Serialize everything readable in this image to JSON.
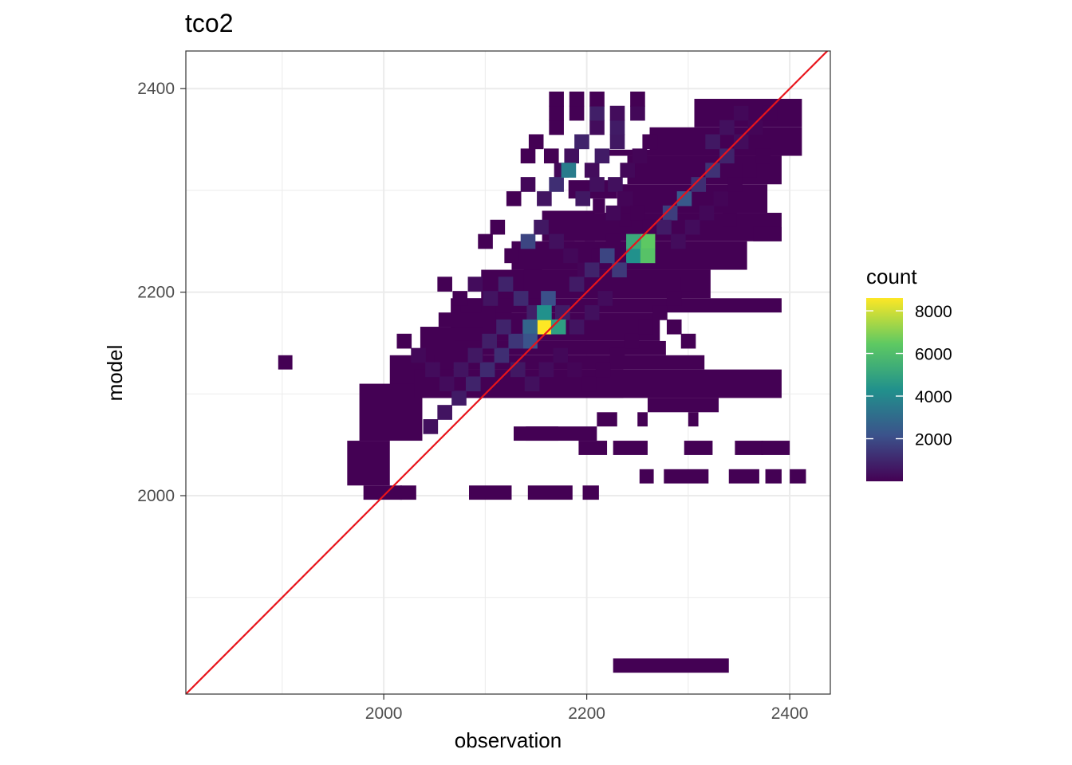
{
  "chart_data": {
    "type": "heatmap",
    "title": "tco2",
    "xlabel": "observation",
    "ylabel": "model",
    "xlim": [
      1805,
      2440
    ],
    "ylim": [
      1805,
      2437
    ],
    "x_ticks": [
      2000,
      2200,
      2400
    ],
    "y_ticks": [
      2000,
      2200,
      2400
    ],
    "grid": true,
    "bin_width": 14.3,
    "bin_height": 14.3,
    "legend": {
      "title": "count",
      "position": "right",
      "range": [
        1,
        8600
      ],
      "ticks": [
        2000,
        4000,
        6000,
        8000
      ]
    },
    "colorscale": [
      "#440154",
      "#3b528b",
      "#21918c",
      "#5ec962",
      "#fde725"
    ],
    "reference_line": {
      "description": "y = x",
      "color": "#e8141b"
    },
    "bins": [
      [
        2170,
        2362,
        1
      ],
      [
        2170,
        2376,
        1
      ],
      [
        2170,
        2390,
        1
      ],
      [
        2190,
        2376,
        1
      ],
      [
        2190,
        2390,
        1
      ],
      [
        2210,
        2362,
        300
      ],
      [
        2210,
        2376,
        800
      ],
      [
        2210,
        2390,
        1
      ],
      [
        2230,
        2348,
        600
      ],
      [
        2230,
        2362,
        700
      ],
      [
        2230,
        2376,
        300
      ],
      [
        2250,
        2376,
        200
      ],
      [
        2250,
        2390,
        1
      ],
      [
        2142,
        2334,
        1
      ],
      [
        2150,
        2348,
        1
      ],
      [
        2165,
        2334,
        1
      ],
      [
        2175,
        2320,
        200
      ],
      [
        2185,
        2334,
        400
      ],
      [
        2195,
        2348,
        900
      ],
      [
        2205,
        2320,
        300
      ],
      [
        2215,
        2334,
        700
      ],
      [
        2228,
        2306,
        400
      ],
      [
        2240,
        2320,
        200
      ],
      [
        2252,
        2334,
        100
      ],
      [
        2262,
        2348,
        1
      ],
      [
        2128,
        2292,
        1
      ],
      [
        2142,
        2306,
        200
      ],
      [
        2158,
        2292,
        500
      ],
      [
        2170,
        2306,
        1200
      ],
      [
        2182,
        2320,
        3600
      ],
      [
        2196,
        2292,
        600
      ],
      [
        2210,
        2306,
        400
      ],
      [
        2226,
        2278,
        200
      ],
      [
        2238,
        2292,
        100
      ],
      [
        2250,
        2278,
        1
      ],
      [
        2100,
        2250,
        1
      ],
      [
        2112,
        2264,
        1
      ],
      [
        2126,
        2236,
        1
      ],
      [
        2142,
        2250,
        1800
      ],
      [
        2155,
        2264,
        600
      ],
      [
        2170,
        2250,
        400
      ],
      [
        2184,
        2236,
        200
      ],
      [
        2198,
        2222,
        100
      ],
      [
        2212,
        2236,
        1
      ],
      [
        2226,
        2250,
        1
      ],
      [
        2240,
        2236,
        1
      ],
      [
        2262,
        2264,
        1
      ],
      [
        2260,
        2250,
        6400
      ],
      [
        2246,
        2236,
        4300
      ],
      [
        2246,
        2250,
        5200
      ],
      [
        2260,
        2236,
        6200
      ],
      [
        2232,
        2222,
        1500
      ],
      [
        2220,
        2236,
        1800
      ],
      [
        2205,
        2222,
        900
      ],
      [
        2190,
        2208,
        700
      ],
      [
        2060,
        2208,
        1
      ],
      [
        2075,
        2194,
        1
      ],
      [
        2090,
        2208,
        300
      ],
      [
        2105,
        2194,
        500
      ],
      [
        2120,
        2208,
        900
      ],
      [
        2135,
        2194,
        1100
      ],
      [
        2148,
        2180,
        800
      ],
      [
        2162,
        2194,
        2100
      ],
      [
        2176,
        2180,
        700
      ],
      [
        2190,
        2166,
        500
      ],
      [
        2205,
        2180,
        400
      ],
      [
        2218,
        2194,
        300
      ],
      [
        2158,
        2166,
        8600
      ],
      [
        2172,
        2166,
        4800
      ],
      [
        2158,
        2180,
        4300
      ],
      [
        2144,
        2166,
        2800
      ],
      [
        2144,
        2152,
        2200
      ],
      [
        2130,
        2152,
        1400
      ],
      [
        2116,
        2138,
        1200
      ],
      [
        2102,
        2124,
        1100
      ],
      [
        2088,
        2110,
        900
      ],
      [
        2074,
        2096,
        700
      ],
      [
        2060,
        2082,
        500
      ],
      [
        2046,
        2068,
        400
      ],
      [
        2020,
        2152,
        1
      ],
      [
        2034,
        2138,
        200
      ],
      [
        2048,
        2124,
        300
      ],
      [
        2062,
        2110,
        300
      ],
      [
        2076,
        2124,
        500
      ],
      [
        2090,
        2138,
        600
      ],
      [
        2104,
        2152,
        800
      ],
      [
        2118,
        2166,
        900
      ],
      [
        2132,
        2124,
        600
      ],
      [
        2146,
        2110,
        400
      ],
      [
        2160,
        2124,
        300
      ],
      [
        2174,
        2138,
        200
      ],
      [
        2188,
        2124,
        100
      ],
      [
        2202,
        2110,
        1
      ],
      [
        2216,
        2124,
        1
      ],
      [
        2230,
        2138,
        1
      ],
      [
        2244,
        2152,
        1
      ],
      [
        2258,
        2166,
        1
      ],
      [
        2272,
        2180,
        1
      ],
      [
        2286,
        2194,
        1
      ],
      [
        2300,
        2208,
        1
      ],
      [
        2286,
        2166,
        1
      ],
      [
        2300,
        2152,
        1
      ],
      [
        2296,
        2292,
        2400
      ],
      [
        2282,
        2278,
        1600
      ],
      [
        2310,
        2306,
        1200
      ],
      [
        2324,
        2320,
        1300
      ],
      [
        2338,
        2334,
        900
      ],
      [
        2324,
        2348,
        600
      ],
      [
        2338,
        2362,
        400
      ],
      [
        2352,
        2348,
        300
      ],
      [
        2352,
        2376,
        200
      ],
      [
        2366,
        2362,
        100
      ],
      [
        2380,
        2376,
        1
      ],
      [
        2276,
        2264,
        700
      ],
      [
        2290,
        2250,
        300
      ],
      [
        2304,
        2264,
        300
      ],
      [
        2318,
        2278,
        200
      ],
      [
        2332,
        2292,
        100
      ],
      [
        2346,
        2306,
        1
      ],
      [
        2360,
        2320,
        1
      ],
      [
        2374,
        2334,
        1
      ]
    ],
    "regions": [
      [
        2212,
        2262,
        2334,
        2340,
        1
      ],
      [
        2182,
        2230,
        2292,
        2310,
        1
      ],
      [
        2156,
        2208,
        2250,
        2280,
        1
      ],
      [
        2126,
        2188,
        2222,
        2250,
        1
      ],
      [
        2096,
        2156,
        2180,
        2222,
        1
      ],
      [
        2066,
        2126,
        2152,
        2194,
        1
      ],
      [
        2036,
        2098,
        2124,
        2166,
        1
      ],
      [
        2006,
        2068,
        2096,
        2138,
        1
      ],
      [
        1976,
        2038,
        2054,
        2110,
        1
      ],
      [
        1964,
        2006,
        2010,
        2054,
        1
      ],
      [
        1980,
        2018,
        1996,
        2010,
        1
      ],
      [
        2016,
        2032,
        1996,
        2010,
        1
      ],
      [
        2306,
        2412,
        2362,
        2390,
        1
      ],
      [
        2262,
        2412,
        2334,
        2362,
        1
      ],
      [
        2240,
        2392,
        2306,
        2334,
        1
      ],
      [
        2230,
        2378,
        2278,
        2306,
        1
      ],
      [
        2198,
        2392,
        2250,
        2278,
        1
      ],
      [
        2168,
        2358,
        2222,
        2250,
        1
      ],
      [
        2138,
        2322,
        2194,
        2222,
        1
      ],
      [
        2110,
        2392,
        2180,
        2194,
        1
      ],
      [
        2110,
        2272,
        2152,
        2180,
        1
      ],
      [
        2070,
        2278,
        2138,
        2152,
        1
      ],
      [
        2050,
        2316,
        2124,
        2138,
        1
      ],
      [
        2030,
        2236,
        2096,
        2124,
        1
      ],
      [
        2030,
        2392,
        2096,
        2124,
        1
      ],
      [
        2260,
        2330,
        2082,
        2096,
        1
      ],
      [
        2210,
        2230,
        2068,
        2082,
        1
      ],
      [
        2140,
        2210,
        2054,
        2068,
        1
      ],
      [
        2250,
        2260,
        2068,
        2082,
        1
      ],
      [
        2300,
        2310,
        2068,
        2082,
        1
      ],
      [
        2128,
        2172,
        2054,
        2068,
        1
      ],
      [
        2192,
        2220,
        2040,
        2054,
        1
      ],
      [
        2226,
        2260,
        2040,
        2054,
        1
      ],
      [
        2296,
        2324,
        2040,
        2054,
        1
      ],
      [
        2346,
        2374,
        2040,
        2054,
        1
      ],
      [
        2372,
        2400,
        2040,
        2054,
        1
      ],
      [
        2252,
        2266,
        2012,
        2026,
        1
      ],
      [
        2276,
        2320,
        2012,
        2026,
        1
      ],
      [
        2340,
        2370,
        2012,
        2026,
        1
      ],
      [
        2376,
        2392,
        2012,
        2026,
        1
      ],
      [
        2400,
        2416,
        2012,
        2026,
        1
      ],
      [
        2084,
        2126,
        1996,
        2010,
        1
      ],
      [
        2142,
        2186,
        1996,
        2010,
        1
      ],
      [
        2196,
        2212,
        1996,
        2010,
        1
      ],
      [
        1896,
        1910,
        2124,
        2138,
        1
      ],
      [
        2226,
        2340,
        1826,
        1840,
        1
      ],
      [
        2076,
        2096,
        2180,
        2194,
        1
      ],
      [
        2054,
        2070,
        2166,
        2180,
        1
      ],
      [
        2206,
        2218,
        2278,
        2292,
        1
      ],
      [
        2232,
        2244,
        2264,
        2278,
        1
      ],
      [
        2334,
        2348,
        2264,
        2278,
        1
      ],
      [
        2364,
        2392,
        2250,
        2264,
        1
      ]
    ]
  }
}
